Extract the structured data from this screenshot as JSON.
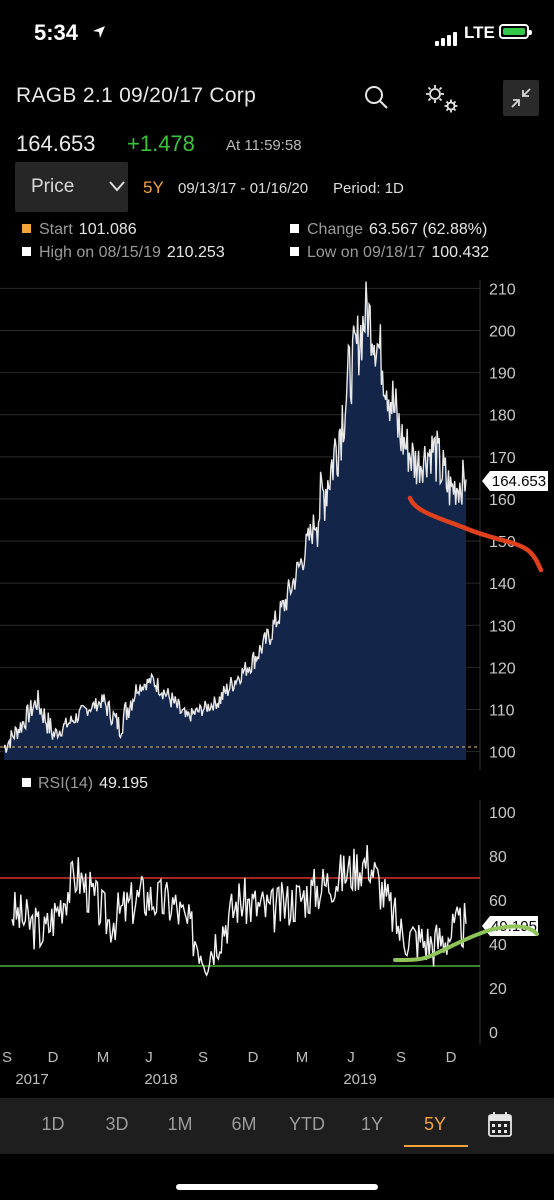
{
  "status": {
    "time": "5:34",
    "network": "LTE"
  },
  "header": {
    "title": "RAGB 2.1 09/20/17 Corp"
  },
  "quote": {
    "price": "164.653",
    "change": "+1.478",
    "at": "At 11:59:58"
  },
  "controls": {
    "field": "Price",
    "range": "5Y",
    "dates": "09/13/17 - 01/16/20",
    "period": "Period: 1D"
  },
  "stats": {
    "start": {
      "label": "Start",
      "value": "101.086",
      "color": "#f3a33a"
    },
    "change": {
      "label": "Change",
      "value": "63.567 (62.88%)"
    },
    "high": {
      "label": "High on 08/15/19",
      "value": "210.253"
    },
    "low": {
      "label": "Low on 09/18/17",
      "value": "100.432"
    }
  },
  "price_chart": {
    "last_label": "164.653",
    "y_ticks": [
      "210",
      "200",
      "190",
      "180",
      "170",
      "160",
      "150",
      "140",
      "130",
      "120",
      "110",
      "100"
    ]
  },
  "rsi": {
    "label": "RSI(14)",
    "value": "49.195",
    "y_ticks": [
      "100",
      "80",
      "60",
      "40",
      "20",
      "0"
    ]
  },
  "x_axis": {
    "months": [
      "S",
      "D",
      "M",
      "J",
      "S",
      "D",
      "M",
      "J",
      "S",
      "D"
    ],
    "years": [
      "2017",
      "2018",
      "2019"
    ]
  },
  "tabs": [
    "1D",
    "3D",
    "1M",
    "6M",
    "YTD",
    "1Y",
    "5Y"
  ],
  "active_tab": "5Y",
  "colors": {
    "accent": "#f3a33a",
    "positive": "#3ac33a",
    "area_fill": "#132649",
    "rsi_upper": "#d9342b",
    "rsi_lower": "#4caf3a"
  },
  "chart_data": [
    {
      "type": "area",
      "title": "",
      "xlabel": "",
      "ylabel": "",
      "x": [
        "2017-09",
        "2017-10",
        "2017-11",
        "2017-12",
        "2018-01",
        "2018-02",
        "2018-03",
        "2018-04",
        "2018-05",
        "2018-06",
        "2018-07",
        "2018-08",
        "2018-09",
        "2018-10",
        "2018-11",
        "2018-12",
        "2019-01",
        "2019-02",
        "2019-03",
        "2019-04",
        "2019-05",
        "2019-06",
        "2019-07",
        "2019-08",
        "2019-09",
        "2019-10",
        "2019-11",
        "2019-12",
        "2020-01"
      ],
      "series": [
        {
          "values": [
            101,
            106,
            112,
            104,
            107,
            110,
            112,
            106,
            115,
            117,
            113,
            108,
            110,
            112,
            117,
            121,
            127,
            135,
            145,
            156,
            170,
            190,
            205,
            192,
            175,
            168,
            172,
            162,
            164.653
          ]
        }
      ],
      "ylim": [
        98,
        212
      ],
      "grid": true
    },
    {
      "type": "line",
      "title": "",
      "x": [
        "2017-09",
        "2017-11",
        "2018-01",
        "2018-03",
        "2018-05",
        "2018-07",
        "2018-09",
        "2018-11",
        "2019-01",
        "2019-03",
        "2019-05",
        "2019-07",
        "2019-09",
        "2019-11",
        "2020-01"
      ],
      "series": [
        {
          "name": "RSI(14)",
          "values": [
            55,
            45,
            72,
            50,
            62,
            58,
            35,
            60,
            55,
            62,
            70,
            78,
            45,
            40,
            49.195
          ]
        }
      ],
      "ylim": [
        0,
        100
      ],
      "reference_lines": [
        70,
        30
      ]
    }
  ]
}
